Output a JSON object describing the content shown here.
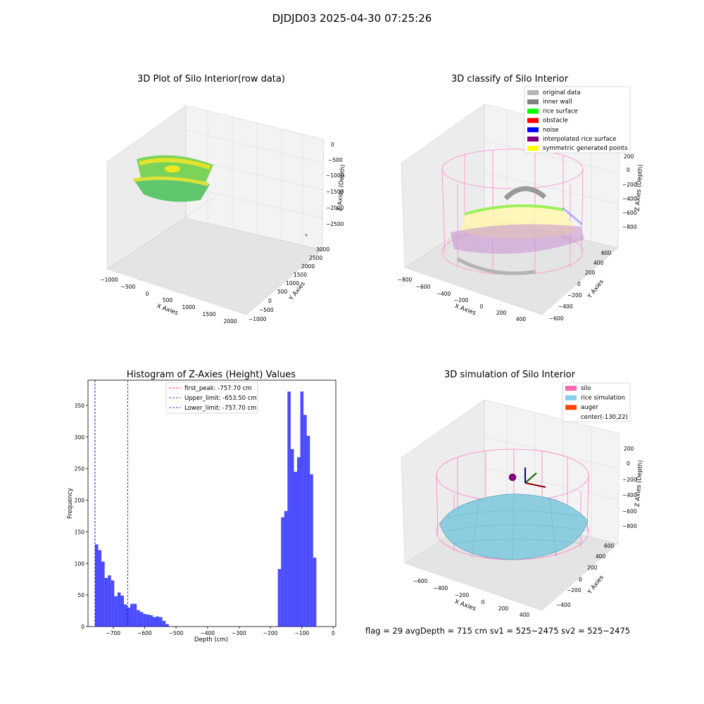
{
  "suptitle": "DJDJD03 2025-04-30 07:25:26",
  "footer": "flag = 29  avgDepth = 715 cm  sv1 = 525~2475  sv2 = 525~2475",
  "panels": {
    "raw": {
      "title": "3D Plot of Silo Interior(row data)",
      "xlabel": "X Axies",
      "ylabel": "Y Axies",
      "zlabel": "Z Axies (Depth)",
      "xticks": [
        "−1000",
        "−500",
        "0",
        "500",
        "1000",
        "1500",
        "2000"
      ],
      "yticks": [
        "−1000",
        "−500",
        "0",
        "500",
        "1000",
        "1500",
        "2000",
        "2500",
        "3000"
      ],
      "zticks": [
        "0",
        "−500",
        "−1000",
        "−1500",
        "−2000",
        "−2500"
      ]
    },
    "classify": {
      "title": "3D classify of Silo Interior",
      "xlabel": "X Axies",
      "ylabel": "Y Axies",
      "zlabel": "Z Axies (Depth)",
      "xticks": [
        "−800",
        "−600",
        "−400",
        "−200",
        "0",
        "200",
        "400"
      ],
      "yticks": [
        "−600",
        "−400",
        "−200",
        "0",
        "200",
        "400",
        "600"
      ],
      "zticks": [
        "200",
        "0",
        "−200",
        "−400",
        "−600",
        "−800"
      ],
      "legend": [
        {
          "label": "original data",
          "color": "#b4b4b4"
        },
        {
          "label": "inner wall",
          "color": "#808080"
        },
        {
          "label": "rice surface",
          "color": "#00ff00"
        },
        {
          "label": "obstacle",
          "color": "#ff0000"
        },
        {
          "label": "noise",
          "color": "#0000ff"
        },
        {
          "label": "interpolated rice surface",
          "color": "#800080"
        },
        {
          "label": "symmetric generated points",
          "color": "#ffff00"
        }
      ]
    },
    "simulation": {
      "title": "3D simulation of Silo Interior",
      "xlabel": "X Axies",
      "ylabel": "Y Axies",
      "zlabel": "Z Axies (Depth)",
      "xticks": [
        "−600",
        "−400",
        "−200",
        "0",
        "200",
        "400"
      ],
      "yticks": [
        "−400",
        "−200",
        "0",
        "200",
        "400",
        "600"
      ],
      "zticks": [
        "200",
        "0",
        "−200",
        "−400",
        "−600",
        "−800"
      ],
      "legend": [
        {
          "label": "silo",
          "color": "#ff69b4"
        },
        {
          "label": "rice simulation",
          "color": "#87ceeb"
        },
        {
          "label": "auger",
          "color": "#ff4500"
        },
        {
          "label": "center(-130,22)",
          "color": "none"
        }
      ]
    }
  },
  "chart_data": {
    "type": "bar",
    "title": "Histogram of Z-Axies (Height) Values",
    "xlabel": "Depth (cm)",
    "ylabel": "Frequency",
    "xlim": [
      -780,
      8
    ],
    "ylim": [
      0,
      390
    ],
    "xticks": [
      -700,
      -600,
      -500,
      -400,
      -300,
      -200,
      -100,
      0
    ],
    "yticks": [
      0,
      50,
      100,
      150,
      200,
      250,
      300,
      350
    ],
    "bar_color": "#0000ff",
    "bin_start": -757.7,
    "bin_width": 10.2,
    "values": [
      130,
      121,
      103,
      77,
      81,
      73,
      48,
      54,
      49,
      35,
      30,
      36,
      36,
      26,
      23,
      20,
      19,
      18,
      15,
      16,
      15,
      9,
      4,
      0,
      0,
      0,
      0,
      0,
      0,
      0,
      0,
      0,
      0,
      0,
      0,
      0,
      0,
      0,
      0,
      0,
      0,
      0,
      0,
      0,
      0,
      0,
      0,
      0,
      0,
      0,
      0,
      0,
      0,
      0,
      0,
      0,
      0,
      91,
      173,
      183,
      372,
      281,
      245,
      268,
      372,
      335,
      302,
      241,
      109
    ],
    "vlines": [
      {
        "label": "first_peak: -757.70 cm",
        "x": -757.7,
        "color": "#ff0000"
      },
      {
        "label": "Upper_limit: -653.50 cm",
        "x": -653.5,
        "color": "#0000ff"
      },
      {
        "label": "Lower_limit: -757.70 cm",
        "x": -757.7,
        "color": "#0000ff"
      }
    ]
  }
}
